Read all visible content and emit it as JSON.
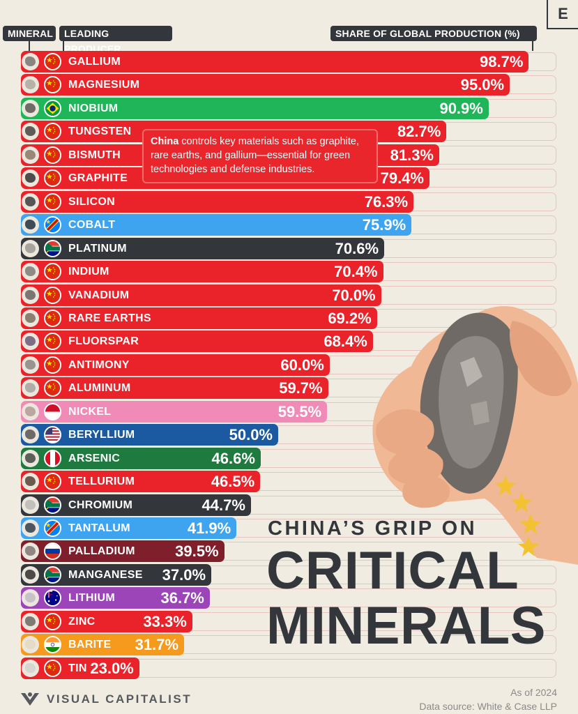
{
  "headers": {
    "mineral": "MINERAL",
    "leading_producer": "LEADING PRODUCER",
    "share": "SHARE OF GLOBAL PRODUCTION (%)"
  },
  "brand_logo": "E",
  "callout": {
    "bold": "China",
    "text": " controls key materials such as graphite, rare earths, and gallium—essential for green technologies and defense industries."
  },
  "title": {
    "line1": "CHINA’S GRIP ON",
    "line2": "CRITICAL",
    "line3": "MINERALS"
  },
  "footer": {
    "brand": "VISUAL CAPITALIST",
    "as_of": "As of 2024",
    "source": "Data source: White & Case LLP"
  },
  "colors": {
    "china": "#ea2229",
    "brazil": "#21b55a",
    "drc": "#3ea4ef",
    "south_africa": "#33363b",
    "indonesia": "#f08bb8",
    "usa": "#1b5aa0",
    "peru": "#1f7a3f",
    "russia": "#7e1f2b",
    "australia": "#9b45b8",
    "india": "#f59a1d"
  },
  "chart_data": {
    "type": "bar",
    "orientation": "horizontal",
    "xlabel": "SHARE OF GLOBAL PRODUCTION (%)",
    "xlim": [
      0,
      100
    ],
    "unit": "%",
    "rows": [
      {
        "mineral": "GALLIUM",
        "producer": "China",
        "flag": "china",
        "value": 98.7,
        "label": "98.7%"
      },
      {
        "mineral": "MAGNESIUM",
        "producer": "China",
        "flag": "china",
        "value": 95.0,
        "label": "95.0%"
      },
      {
        "mineral": "NIOBIUM",
        "producer": "Brazil",
        "flag": "brazil",
        "value": 90.9,
        "label": "90.9%"
      },
      {
        "mineral": "TUNGSTEN",
        "producer": "China",
        "flag": "china",
        "value": 82.7,
        "label": "82.7%"
      },
      {
        "mineral": "BISMUTH",
        "producer": "China",
        "flag": "china",
        "value": 81.3,
        "label": "81.3%"
      },
      {
        "mineral": "GRAPHITE",
        "producer": "China",
        "flag": "china",
        "value": 79.4,
        "label": "79.4%"
      },
      {
        "mineral": "SILICON",
        "producer": "China",
        "flag": "china",
        "value": 76.3,
        "label": "76.3%"
      },
      {
        "mineral": "COBALT",
        "producer": "DR Congo",
        "flag": "drc",
        "value": 75.9,
        "label": "75.9%"
      },
      {
        "mineral": "PLATINUM",
        "producer": "South Africa",
        "flag": "south_africa",
        "value": 70.6,
        "label": "70.6%"
      },
      {
        "mineral": "INDIUM",
        "producer": "China",
        "flag": "china",
        "value": 70.4,
        "label": "70.4%"
      },
      {
        "mineral": "VANADIUM",
        "producer": "China",
        "flag": "china",
        "value": 70.0,
        "label": "70.0%"
      },
      {
        "mineral": "RARE EARTHS",
        "producer": "China",
        "flag": "china",
        "value": 69.2,
        "label": "69.2%"
      },
      {
        "mineral": "FLUORSPAR",
        "producer": "China",
        "flag": "china",
        "value": 68.4,
        "label": "68.4%"
      },
      {
        "mineral": "ANTIMONY",
        "producer": "China",
        "flag": "china",
        "value": 60.0,
        "label": "60.0%"
      },
      {
        "mineral": "ALUMINUM",
        "producer": "China",
        "flag": "china",
        "value": 59.7,
        "label": "59.7%"
      },
      {
        "mineral": "NICKEL",
        "producer": "Indonesia",
        "flag": "indonesia",
        "value": 59.5,
        "label": "59.5%"
      },
      {
        "mineral": "BERYLLIUM",
        "producer": "USA",
        "flag": "usa",
        "value": 50.0,
        "label": "50.0%"
      },
      {
        "mineral": "ARSENIC",
        "producer": "Peru",
        "flag": "peru",
        "value": 46.6,
        "label": "46.6%"
      },
      {
        "mineral": "TELLURIUM",
        "producer": "China",
        "flag": "china",
        "value": 46.5,
        "label": "46.5%"
      },
      {
        "mineral": "CHROMIUM",
        "producer": "South Africa",
        "flag": "south_africa",
        "value": 44.7,
        "label": "44.7%"
      },
      {
        "mineral": "TANTALUM",
        "producer": "DR Congo",
        "flag": "drc",
        "value": 41.9,
        "label": "41.9%"
      },
      {
        "mineral": "PALLADIUM",
        "producer": "Russia",
        "flag": "russia",
        "value": 39.5,
        "label": "39.5%"
      },
      {
        "mineral": "MANGANESE",
        "producer": "South Africa",
        "flag": "south_africa",
        "value": 37.0,
        "label": "37.0%"
      },
      {
        "mineral": "LITHIUM",
        "producer": "Australia",
        "flag": "australia",
        "value": 36.7,
        "label": "36.7%"
      },
      {
        "mineral": "ZINC",
        "producer": "China",
        "flag": "china",
        "value": 33.3,
        "label": "33.3%"
      },
      {
        "mineral": "BARITE",
        "producer": "India",
        "flag": "india",
        "value": 31.7,
        "label": "31.7%"
      },
      {
        "mineral": "TIN",
        "producer": "China",
        "flag": "china",
        "value": 23.0,
        "label": "23.0%"
      }
    ]
  }
}
